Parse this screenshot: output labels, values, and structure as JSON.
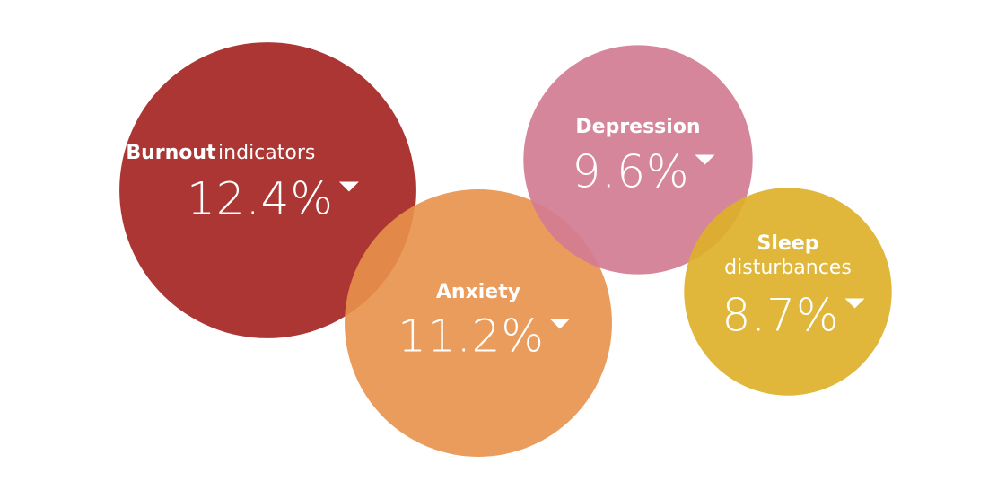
{
  "chart_data": {
    "type": "bubble",
    "categories": [
      [
        "Burnout",
        "indicators"
      ],
      [
        "Anxiety"
      ],
      [
        "Depression"
      ],
      [
        "Sleep",
        "disturbances"
      ]
    ],
    "values": [
      12.4,
      11.2,
      9.6,
      8.7
    ],
    "value_labels": [
      "12.4%",
      "11.2%",
      "9.6%",
      "8.7%"
    ],
    "colors": [
      "#ac3633",
      "#e8914a",
      "#d27c92",
      "#ddb12a"
    ]
  }
}
